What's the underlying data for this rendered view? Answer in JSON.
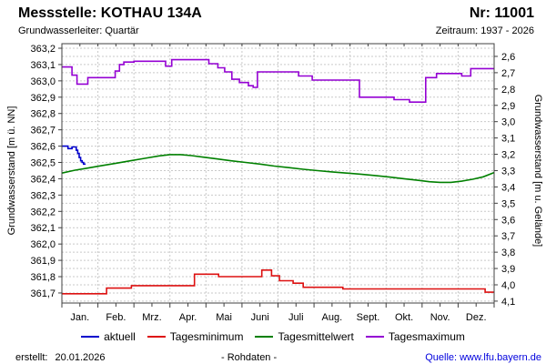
{
  "header": {
    "station_label": "Messstelle: KOTHAU 134A",
    "number_label": "Nr: 11001",
    "aquifer_label": "Grundwasserleiter: Quartär",
    "period_label": "Zeitraum: 1937 - 2026"
  },
  "chart_data": {
    "type": "line",
    "grid": "dashed",
    "legend_position": "bottom",
    "x": {
      "categories": [
        "Jan.",
        "Feb.",
        "Mrz.",
        "Apr.",
        "Mai",
        "Juni",
        "Juli",
        "Aug.",
        "Sept.",
        "Okt.",
        "Nov.",
        "Dez."
      ]
    },
    "y_left": {
      "label": "Grundwasserstand [m ü. NN]",
      "ticks": [
        "363,2",
        "363,1",
        "363,0",
        "362,9",
        "362,8",
        "362,7",
        "362,6",
        "362,5",
        "362,4",
        "362,3",
        "362,2",
        "362,1",
        "362,0",
        "361,9",
        "361,8",
        "361,7"
      ],
      "tick_step": 0.1,
      "range": [
        361.64,
        363.23
      ]
    },
    "y_right": {
      "label": "Grundwasserstand [m u. Gelände]",
      "ticks": [
        "2,6",
        "2,7",
        "2,8",
        "2,9",
        "3,0",
        "3,1",
        "3,2",
        "3,3",
        "3,4",
        "3,5",
        "3,6",
        "3,7",
        "3,8",
        "3,9",
        "4,0",
        "4,1"
      ],
      "tick_step": 0.1,
      "offset_sum": 365.75
    },
    "series": [
      {
        "name": "aktuell",
        "label": "aktuell",
        "color": "#0000cc",
        "points": [
          [
            0,
            362.6
          ],
          [
            0.17,
            362.6
          ],
          [
            0.17,
            362.585
          ],
          [
            0.28,
            362.585
          ],
          [
            0.28,
            362.595
          ],
          [
            0.4,
            362.595
          ],
          [
            0.4,
            362.575
          ],
          [
            0.44,
            362.575
          ],
          [
            0.44,
            362.555
          ],
          [
            0.48,
            362.555
          ],
          [
            0.48,
            362.53
          ],
          [
            0.52,
            362.53
          ],
          [
            0.52,
            362.51
          ],
          [
            0.56,
            362.51
          ],
          [
            0.56,
            362.5
          ],
          [
            0.6,
            362.5
          ],
          [
            0.6,
            362.49
          ],
          [
            0.66,
            362.49
          ]
        ]
      },
      {
        "name": "Tagesminimum",
        "label": "Tagesminimum",
        "color": "#dd1111",
        "points": [
          [
            0,
            361.695
          ],
          [
            1.24,
            361.695
          ],
          [
            1.24,
            361.73
          ],
          [
            1.93,
            361.73
          ],
          [
            1.93,
            361.745
          ],
          [
            3.68,
            361.745
          ],
          [
            3.68,
            361.815
          ],
          [
            4.35,
            361.815
          ],
          [
            4.35,
            361.8
          ],
          [
            5.55,
            361.8
          ],
          [
            5.55,
            361.84
          ],
          [
            5.82,
            361.84
          ],
          [
            5.82,
            361.805
          ],
          [
            6.04,
            361.805
          ],
          [
            6.04,
            361.775
          ],
          [
            6.42,
            361.775
          ],
          [
            6.42,
            361.76
          ],
          [
            6.7,
            361.76
          ],
          [
            6.7,
            361.735
          ],
          [
            7.8,
            361.735
          ],
          [
            7.8,
            361.725
          ],
          [
            11.75,
            361.725
          ],
          [
            11.75,
            361.705
          ],
          [
            12,
            361.705
          ]
        ]
      },
      {
        "name": "Tagesmittelwert",
        "label": "Tagesmittelwert",
        "color": "#008000",
        "points": [
          [
            0,
            362.435
          ],
          [
            0.35,
            362.452
          ],
          [
            0.7,
            362.465
          ],
          [
            1.1,
            362.48
          ],
          [
            1.5,
            362.495
          ],
          [
            1.9,
            362.51
          ],
          [
            2.3,
            362.525
          ],
          [
            2.7,
            362.54
          ],
          [
            3.0,
            362.548
          ],
          [
            3.3,
            362.548
          ],
          [
            3.6,
            362.542
          ],
          [
            3.9,
            362.533
          ],
          [
            4.3,
            362.522
          ],
          [
            4.7,
            362.51
          ],
          [
            5.1,
            362.5
          ],
          [
            5.5,
            362.49
          ],
          [
            5.9,
            362.478
          ],
          [
            6.3,
            362.468
          ],
          [
            6.7,
            362.458
          ],
          [
            7.1,
            362.45
          ],
          [
            7.5,
            362.442
          ],
          [
            7.9,
            362.435
          ],
          [
            8.3,
            362.428
          ],
          [
            8.7,
            362.42
          ],
          [
            9.1,
            362.41
          ],
          [
            9.5,
            362.4
          ],
          [
            9.9,
            362.39
          ],
          [
            10.2,
            362.382
          ],
          [
            10.5,
            362.378
          ],
          [
            10.8,
            362.378
          ],
          [
            11.1,
            362.385
          ],
          [
            11.4,
            362.397
          ],
          [
            11.7,
            362.412
          ],
          [
            12,
            362.438
          ]
        ]
      },
      {
        "name": "Tagesmaximum",
        "label": "Tagesmaximum",
        "color": "#9400d3",
        "points": [
          [
            0,
            363.085
          ],
          [
            0.28,
            363.085
          ],
          [
            0.28,
            363.035
          ],
          [
            0.42,
            363.035
          ],
          [
            0.42,
            362.98
          ],
          [
            0.72,
            362.98
          ],
          [
            0.72,
            363.02
          ],
          [
            1.48,
            363.02
          ],
          [
            1.48,
            363.06
          ],
          [
            1.6,
            363.06
          ],
          [
            1.6,
            363.1
          ],
          [
            1.72,
            363.1
          ],
          [
            1.72,
            363.115
          ],
          [
            2.0,
            363.115
          ],
          [
            2.0,
            363.12
          ],
          [
            2.88,
            363.12
          ],
          [
            2.88,
            363.09
          ],
          [
            3.05,
            363.09
          ],
          [
            3.05,
            363.13
          ],
          [
            4.08,
            363.13
          ],
          [
            4.08,
            363.105
          ],
          [
            4.33,
            363.105
          ],
          [
            4.33,
            363.08
          ],
          [
            4.52,
            363.08
          ],
          [
            4.52,
            363.055
          ],
          [
            4.72,
            363.055
          ],
          [
            4.72,
            363.01
          ],
          [
            4.93,
            363.01
          ],
          [
            4.93,
            362.99
          ],
          [
            5.18,
            362.99
          ],
          [
            5.18,
            362.97
          ],
          [
            5.31,
            362.97
          ],
          [
            5.31,
            362.96
          ],
          [
            5.43,
            362.96
          ],
          [
            5.43,
            363.055
          ],
          [
            6.57,
            363.055
          ],
          [
            6.57,
            363.03
          ],
          [
            6.95,
            363.03
          ],
          [
            6.95,
            363.005
          ],
          [
            8.26,
            363.005
          ],
          [
            8.26,
            362.9
          ],
          [
            9.22,
            362.9
          ],
          [
            9.22,
            362.885
          ],
          [
            9.65,
            362.885
          ],
          [
            9.65,
            362.87
          ],
          [
            10.1,
            362.87
          ],
          [
            10.1,
            363.02
          ],
          [
            10.4,
            363.02
          ],
          [
            10.4,
            363.045
          ],
          [
            11.1,
            363.045
          ],
          [
            11.1,
            363.03
          ],
          [
            11.35,
            363.03
          ],
          [
            11.35,
            363.075
          ],
          [
            12,
            363.075
          ]
        ]
      }
    ]
  },
  "footer": {
    "created_label": "erstellt:",
    "created_date": "20.01.2026",
    "center_label": "- Rohdaten -",
    "source_label": "Quelle: www.lfu.bayern.de"
  },
  "colors": {
    "grid": "#c9c9c9",
    "axis": "#404040",
    "link": "#0000dd"
  }
}
